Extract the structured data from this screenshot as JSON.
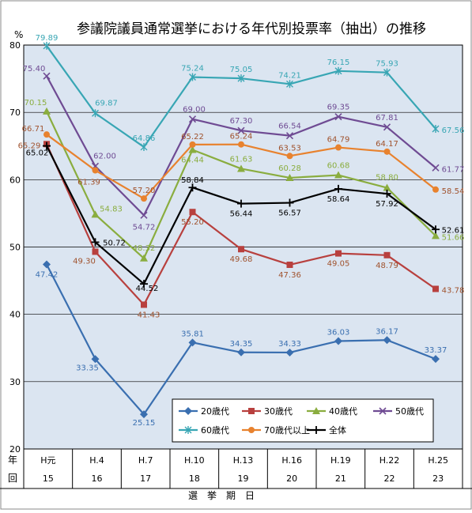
{
  "chart_data": {
    "type": "line",
    "title": "参議院議員通常選挙における年代別投票率（抽出）の推移",
    "ylabel": "%",
    "ylim": [
      20,
      80
    ],
    "yticks": [
      20,
      30,
      40,
      50,
      60,
      70,
      80
    ],
    "xaxis_row1_label": "年",
    "xaxis_row2_label": "回",
    "xlabel": "選　挙　期　日",
    "categories": [
      "H元",
      "H.4",
      "H.7",
      "H.10",
      "H.13",
      "H.16",
      "H.19",
      "H.22",
      "H.25"
    ],
    "rounds": [
      "15",
      "16",
      "17",
      "18",
      "19",
      "20",
      "21",
      "22",
      "23"
    ],
    "grid": true,
    "legend_position": "bottom-center",
    "series": [
      {
        "name": "20歳代",
        "color": "#3a6fb0",
        "marker": "diamond",
        "values": [
          47.42,
          33.35,
          25.15,
          35.81,
          34.35,
          34.33,
          36.03,
          36.17,
          33.37
        ],
        "labels": [
          "47.42",
          "33.35",
          "25.15",
          "35.81",
          "34.35",
          "34.33",
          "36.03",
          "36.17",
          "33.37"
        ]
      },
      {
        "name": "30歳代",
        "color": "#b8403e",
        "marker": "square",
        "values": [
          65.29,
          49.3,
          41.43,
          55.2,
          49.68,
          47.36,
          49.05,
          48.79,
          43.78
        ],
        "labels": [
          "65.29",
          "49.30",
          "41.43",
          "55.20",
          "49.68",
          "47.36",
          "49.05",
          "48.79",
          "43.78"
        ]
      },
      {
        "name": "40歳代",
        "color": "#8aad3f",
        "marker": "triangle",
        "values": [
          70.15,
          54.83,
          48.32,
          64.44,
          61.63,
          60.28,
          60.68,
          58.8,
          51.66
        ],
        "labels": [
          "70.15",
          "54.83",
          "48.32",
          "64.44",
          "61.63",
          "60.28",
          "60.68",
          "58.80",
          "51.66"
        ]
      },
      {
        "name": "50歳代",
        "color": "#6f4b93",
        "marker": "x",
        "values": [
          75.4,
          62.0,
          54.72,
          69.0,
          67.3,
          66.54,
          69.35,
          67.81,
          61.77
        ],
        "labels": [
          "75.40",
          "62.00",
          "54.72",
          "69.00",
          "67.30",
          "66.54",
          "69.35",
          "67.81",
          "61.77"
        ]
      },
      {
        "name": "60歳代",
        "color": "#38a6b4",
        "marker": "star",
        "values": [
          79.89,
          69.87,
          64.86,
          75.24,
          75.05,
          74.21,
          76.15,
          75.93,
          67.56
        ],
        "labels": [
          "79.89",
          "69.87",
          "64.86",
          "75.24",
          "75.05",
          "74.21",
          "76.15",
          "75.93",
          "67.56"
        ]
      },
      {
        "name": "70歳代以上",
        "color": "#e8822e",
        "marker": "circle",
        "values": [
          66.71,
          61.39,
          57.2,
          65.22,
          65.24,
          63.53,
          64.79,
          64.17,
          58.54
        ],
        "labels": [
          "66.71",
          "61.39",
          "57.20",
          "65.22",
          "65.24",
          "63.53",
          "64.79",
          "64.17",
          "58.54"
        ]
      },
      {
        "name": "全体",
        "color": "#000000",
        "marker": "plus",
        "values": [
          65.02,
          50.72,
          44.52,
          58.84,
          56.44,
          56.57,
          58.64,
          57.92,
          52.61
        ],
        "labels": [
          "65.02",
          "50.72",
          "44.52",
          "58.84",
          "56.44",
          "56.57",
          "58.64",
          "57.92",
          "52.61"
        ]
      }
    ]
  }
}
